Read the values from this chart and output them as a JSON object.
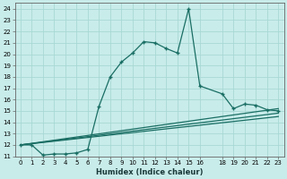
{
  "title": "",
  "xlabel": "Humidex (Indice chaleur)",
  "background_color": "#c8ecea",
  "grid_color": "#a8d8d4",
  "line_color": "#1a6e64",
  "xlim": [
    -0.5,
    23.5
  ],
  "ylim": [
    11,
    24.5
  ],
  "yticks": [
    11,
    12,
    13,
    14,
    15,
    16,
    17,
    18,
    19,
    20,
    21,
    22,
    23,
    24
  ],
  "xticks": [
    0,
    1,
    2,
    3,
    4,
    5,
    6,
    7,
    8,
    9,
    10,
    11,
    12,
    13,
    14,
    15,
    16,
    18,
    19,
    20,
    21,
    22,
    23
  ],
  "line1_x": [
    0,
    1,
    2,
    3,
    4,
    5,
    6,
    7,
    8,
    9,
    10,
    11,
    12,
    13,
    14,
    15,
    16,
    18,
    19,
    20,
    21,
    22,
    23
  ],
  "line1_y": [
    12.0,
    12.0,
    11.1,
    11.2,
    11.2,
    11.3,
    11.6,
    15.4,
    18.0,
    19.3,
    20.1,
    21.1,
    21.0,
    20.5,
    20.1,
    24.0,
    17.2,
    16.5,
    15.2,
    15.6,
    15.5,
    15.1,
    15.0
  ],
  "line2_x": [
    0,
    23
  ],
  "line2_y": [
    12.0,
    15.2
  ],
  "line3_x": [
    0,
    23
  ],
  "line3_y": [
    12.0,
    14.8
  ],
  "line4_x": [
    0,
    23
  ],
  "line4_y": [
    12.0,
    14.5
  ]
}
